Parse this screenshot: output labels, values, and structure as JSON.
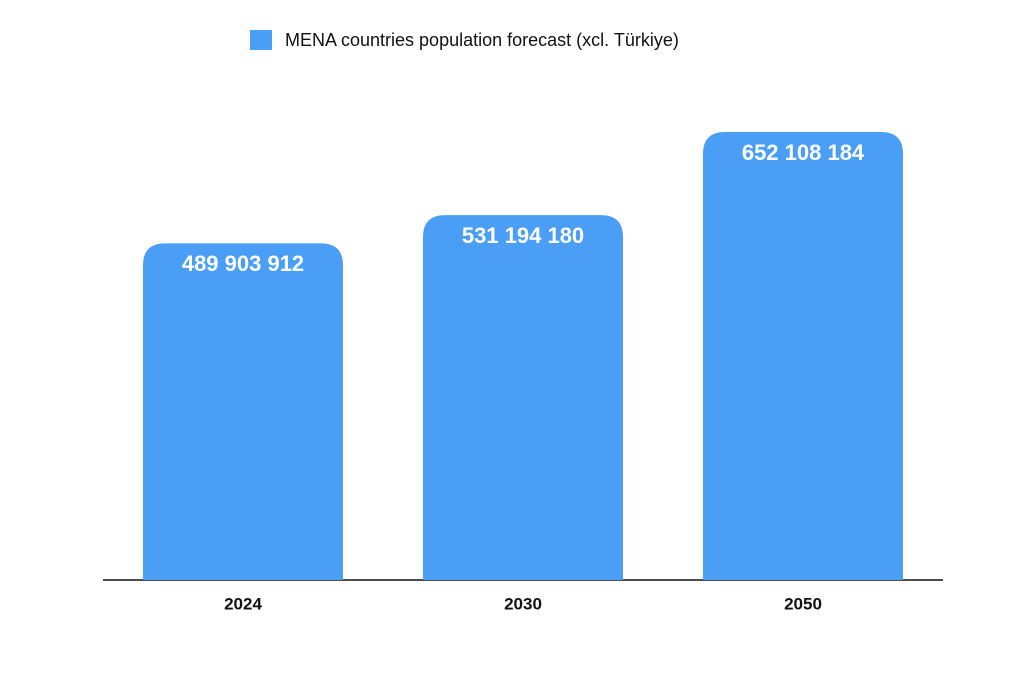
{
  "chart_data": {
    "type": "bar",
    "categories": [
      "2024",
      "2030",
      "2050"
    ],
    "series": [
      {
        "name": "MENA countries population forecast (xcl. Türkiye)",
        "color": "#4b9ef5",
        "values": [
          489903912,
          531194180,
          652108184
        ],
        "value_labels": [
          "489 903 912",
          "531 194 180",
          "652 108 184"
        ]
      }
    ],
    "legend": "top"
  }
}
